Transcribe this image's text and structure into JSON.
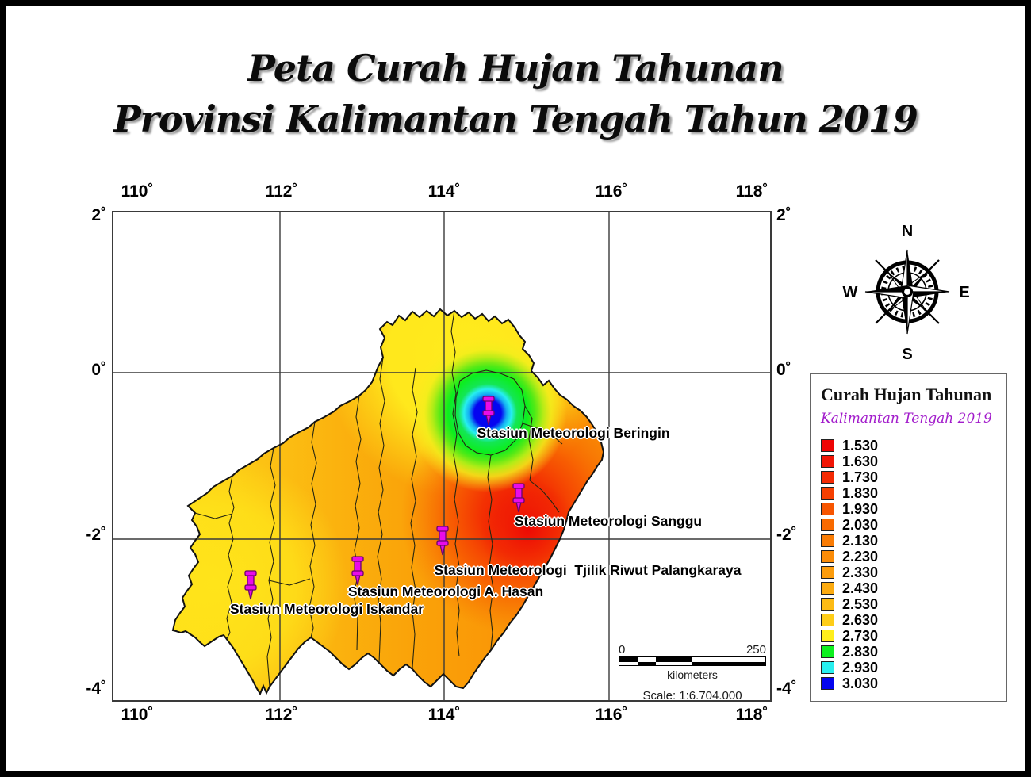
{
  "title": {
    "line1": "Peta Curah Hujan Tahunan",
    "line2": "Provinsi Kalimantan Tengah Tahun 2019"
  },
  "map": {
    "lon_ticks": [
      "110˚",
      "112˚",
      "114˚",
      "116˚",
      "118˚"
    ],
    "lat_ticks": [
      "2˚",
      "0˚",
      "-2˚",
      "-4˚"
    ],
    "stations": [
      {
        "name": "Stasiun Meteorologi Beringin"
      },
      {
        "name": "Stasiun Meteorologi Sanggu"
      },
      {
        "name": "Stasiun Meteorologi  Tjilik Riwut Palangkaraya"
      },
      {
        "name": "Stasiun Meteorologi A. Hasan"
      },
      {
        "name": "Stasiun Meteorologi Iskandar"
      }
    ]
  },
  "compass": {
    "n": "N",
    "e": "E",
    "s": "S",
    "w": "W"
  },
  "legend": {
    "title": "Curah Hujan Tahunan",
    "subtitle": "Kalimantan Tengah 2019",
    "items": [
      {
        "value": "1.530",
        "color": "#EE0404"
      },
      {
        "value": "1.630",
        "color": "#F11505"
      },
      {
        "value": "1.730",
        "color": "#F42A03"
      },
      {
        "value": "1.830",
        "color": "#F64002"
      },
      {
        "value": "1.930",
        "color": "#F75501"
      },
      {
        "value": "2.030",
        "color": "#F96A00"
      },
      {
        "value": "2.130",
        "color": "#FA7C04"
      },
      {
        "value": "2.230",
        "color": "#FB8C08"
      },
      {
        "value": "2.330",
        "color": "#FC9C0C"
      },
      {
        "value": "2.430",
        "color": "#FCAB10"
      },
      {
        "value": "2.530",
        "color": "#FDBB14"
      },
      {
        "value": "2.630",
        "color": "#FECD18"
      },
      {
        "value": "2.730",
        "color": "#FFEE1C"
      },
      {
        "value": "2.830",
        "color": "#0DF01F"
      },
      {
        "value": "2.930",
        "color": "#28EFEF"
      },
      {
        "value": "3.030",
        "color": "#0404EE"
      }
    ]
  },
  "scalebar": {
    "start": "0",
    "end": "250",
    "unit": "kilometers",
    "scale_text": "Scale: 1:6.704.000"
  },
  "colors": {
    "subtitle_purple": "#A21CCB",
    "pin_magenta": "#E90CE9",
    "bullseye_blue": "#0505F0",
    "hotspot_red": "#F01505"
  }
}
